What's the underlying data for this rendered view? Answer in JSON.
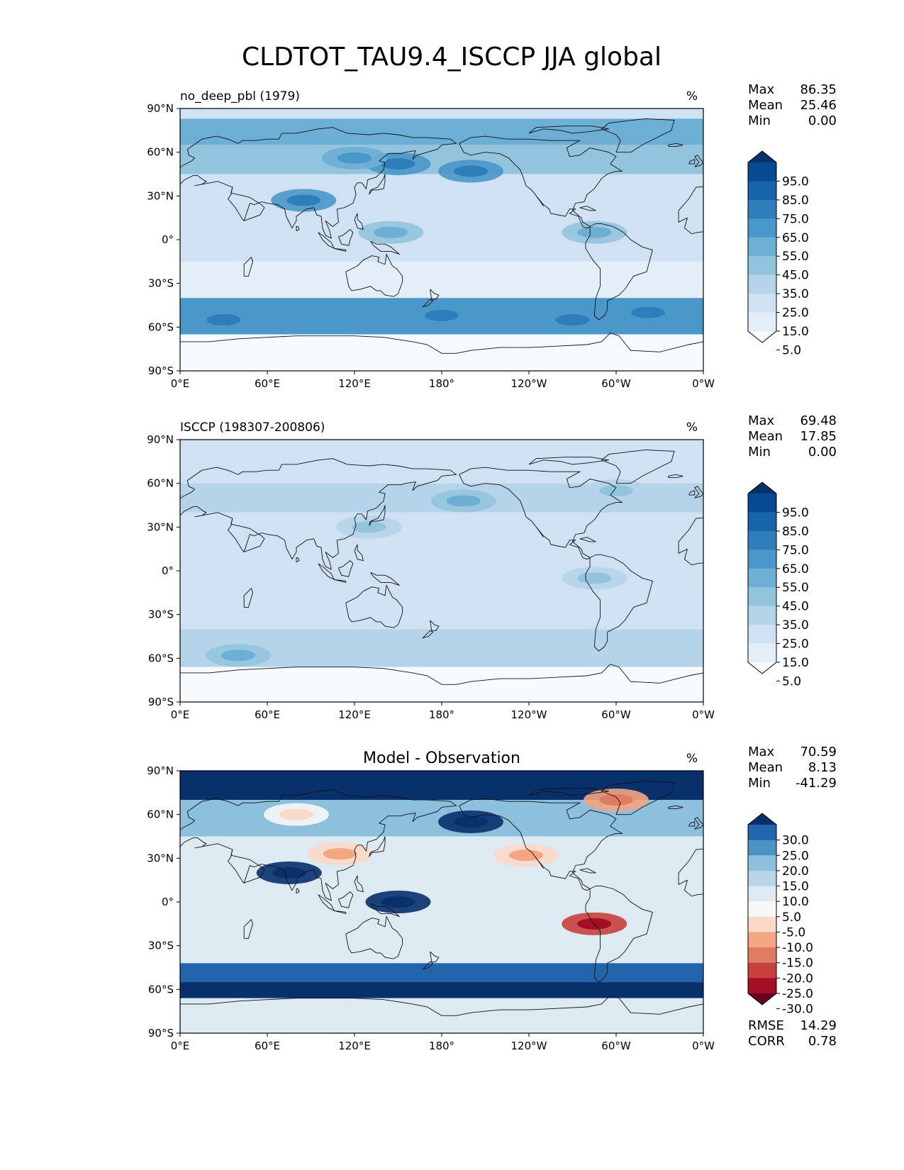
{
  "figure_title": "CLDTOT_TAU9.4_ISCCP JJA global",
  "chart_data": [
    {
      "type": "heatmap",
      "panel": "test",
      "title_left": "no_deep_pbl (1979)",
      "title_center": "",
      "units": "%",
      "stats": [
        {
          "label": "Max",
          "value": "86.35"
        },
        {
          "label": "Mean",
          "value": "25.46"
        },
        {
          "label": "Min",
          "value": "0.00"
        }
      ],
      "colorbar": {
        "colormap": "Blues",
        "levels": [
          0,
          5,
          15,
          25,
          35,
          45,
          55,
          65,
          75,
          85,
          95,
          100
        ],
        "tick_labels": [
          "95.0",
          "85.0",
          "75.0",
          "65.0",
          "55.0",
          "45.0",
          "35.0",
          "25.0",
          "15.0",
          "5.0"
        ],
        "extend": "both"
      },
      "xlim": [
        0,
        360
      ],
      "ylim": [
        -90,
        90
      ],
      "x_tick_labels": [
        "0°E",
        "60°E",
        "120°E",
        "180°",
        "120°W",
        "60°W",
        "0°W"
      ],
      "y_tick_labels": [
        "90°N",
        "60°N",
        "30°N",
        "0°",
        "30°S",
        "60°S",
        "90°S"
      ],
      "bands": [
        {
          "lat": [
            83,
            90
          ],
          "value": 20
        },
        {
          "lat": [
            65,
            83
          ],
          "value": 48
        },
        {
          "lat": [
            45,
            65
          ],
          "value": 36
        },
        {
          "lat": [
            20,
            45
          ],
          "value": 16
        },
        {
          "lat": [
            -15,
            20
          ],
          "value": 20
        },
        {
          "lat": [
            -40,
            -15
          ],
          "value": 14
        },
        {
          "lat": [
            -65,
            -40
          ],
          "value": 55
        },
        {
          "lat": [
            -90,
            -65
          ],
          "value": 3
        }
      ],
      "blobs": [
        {
          "lon": 200,
          "lat": 47,
          "value": 62
        },
        {
          "lon": 150,
          "lat": 52,
          "value": 58
        },
        {
          "lon": 85,
          "lat": 27,
          "value": 60
        },
        {
          "lon": 120,
          "lat": 56,
          "value": 52
        },
        {
          "lon": 180,
          "lat": -52,
          "value": 62
        },
        {
          "lon": 270,
          "lat": -55,
          "value": 60
        },
        {
          "lon": 322,
          "lat": -50,
          "value": 58
        },
        {
          "lon": 30,
          "lat": -55,
          "value": 55
        },
        {
          "lon": 145,
          "lat": 5,
          "value": 38
        },
        {
          "lon": 285,
          "lat": 5,
          "value": 35
        }
      ]
    },
    {
      "type": "heatmap",
      "panel": "reference",
      "title_left": "ISCCP (198307-200806)",
      "title_center": "",
      "units": "%",
      "stats": [
        {
          "label": "Max",
          "value": "69.48"
        },
        {
          "label": "Mean",
          "value": "17.85"
        },
        {
          "label": "Min",
          "value": "0.00"
        }
      ],
      "colorbar": {
        "colormap": "Blues",
        "levels": [
          0,
          5,
          15,
          25,
          35,
          45,
          55,
          65,
          75,
          85,
          95,
          100
        ],
        "tick_labels": [
          "95.0",
          "85.0",
          "75.0",
          "65.0",
          "55.0",
          "45.0",
          "35.0",
          "25.0",
          "15.0",
          "5.0"
        ],
        "extend": "both"
      },
      "xlim": [
        0,
        360
      ],
      "ylim": [
        -90,
        90
      ],
      "x_tick_labels": [
        "0°E",
        "60°E",
        "120°E",
        "180°",
        "120°W",
        "60°W",
        "0°W"
      ],
      "y_tick_labels": [
        "90°N",
        "60°N",
        "30°N",
        "0°",
        "30°S",
        "60°S",
        "90°S"
      ],
      "bands": [
        {
          "lat": [
            60,
            90
          ],
          "value": 24
        },
        {
          "lat": [
            40,
            60
          ],
          "value": 27
        },
        {
          "lat": [
            20,
            40
          ],
          "value": 17
        },
        {
          "lat": [
            -10,
            20
          ],
          "value": 18
        },
        {
          "lat": [
            -40,
            -10
          ],
          "value": 16
        },
        {
          "lat": [
            -66,
            -40
          ],
          "value": 30
        },
        {
          "lat": [
            -90,
            -66
          ],
          "value": 0
        }
      ],
      "blobs": [
        {
          "lon": 195,
          "lat": 48,
          "value": 36
        },
        {
          "lon": 130,
          "lat": 30,
          "value": 32
        },
        {
          "lon": 285,
          "lat": -5,
          "value": 34
        },
        {
          "lon": 300,
          "lat": 55,
          "value": 34
        },
        {
          "lon": 40,
          "lat": -58,
          "value": 38
        }
      ]
    },
    {
      "type": "heatmap",
      "panel": "difference",
      "title_left": "",
      "title_center": "Model - Observation",
      "units": "%",
      "stats": [
        {
          "label": "Max",
          "value": "70.59"
        },
        {
          "label": "Mean",
          "value": "8.13"
        },
        {
          "label": "Min",
          "value": "-41.29"
        }
      ],
      "colorbar": {
        "colormap": "RdBu",
        "levels": [
          -35,
          -30,
          -25,
          -20,
          -15,
          -10,
          -5,
          5,
          10,
          15,
          20,
          25,
          30,
          35
        ],
        "tick_labels": [
          "30.0",
          "25.0",
          "20.0",
          "15.0",
          "10.0",
          "5.0",
          "-5.0",
          "-10.0",
          "-15.0",
          "-20.0",
          "-25.0",
          "-30.0"
        ],
        "extend": "both"
      },
      "xlim": [
        0,
        360
      ],
      "ylim": [
        -90,
        90
      ],
      "x_tick_labels": [
        "0°E",
        "60°E",
        "120°E",
        "180°",
        "120°W",
        "60°W",
        "0°W"
      ],
      "y_tick_labels": [
        "90°N",
        "60°N",
        "30°N",
        "0°",
        "30°S",
        "60°S",
        "90°S"
      ],
      "bands": [
        {
          "lat": [
            70,
            90
          ],
          "value": 32
        },
        {
          "lat": [
            45,
            70
          ],
          "value": 14
        },
        {
          "lat": [
            15,
            45
          ],
          "value": 2
        },
        {
          "lat": [
            -15,
            15
          ],
          "value": 3
        },
        {
          "lat": [
            -42,
            -15
          ],
          "value": 2
        },
        {
          "lat": [
            -55,
            -42
          ],
          "value": 22
        },
        {
          "lat": [
            -66,
            -55
          ],
          "value": 32
        },
        {
          "lat": [
            -90,
            -66
          ],
          "value": 0
        }
      ],
      "blobs": [
        {
          "lon": 300,
          "lat": 70,
          "value": -18
        },
        {
          "lon": 285,
          "lat": -15,
          "value": -30
        },
        {
          "lon": 110,
          "lat": 33,
          "value": -12
        },
        {
          "lon": 238,
          "lat": 32,
          "value": -15
        },
        {
          "lon": 80,
          "lat": 60,
          "value": -8
        },
        {
          "lon": 75,
          "lat": 20,
          "value": 30
        },
        {
          "lon": 150,
          "lat": 0,
          "value": 26
        },
        {
          "lon": 200,
          "lat": 55,
          "value": 32
        }
      ],
      "rmse": {
        "label": "RMSE",
        "value": "14.29"
      },
      "corr": {
        "label": "CORR",
        "value": "0.78"
      }
    }
  ]
}
